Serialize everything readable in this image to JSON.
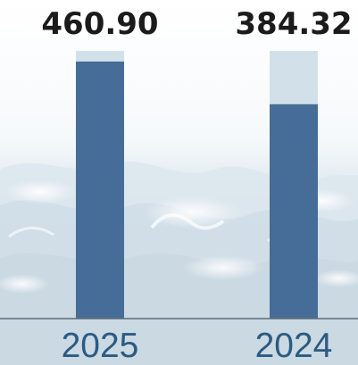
{
  "chart_data": {
    "type": "bar",
    "categories": [
      "2025",
      "2024"
    ],
    "series": [
      {
        "values": [
          460.9,
          384.32
        ]
      }
    ],
    "value_labels": [
      "460.90",
      "384.32"
    ],
    "background_total": [
      480,
      480
    ],
    "title": "",
    "xlabel": "",
    "ylabel": "",
    "ylim": [
      0,
      480
    ],
    "grid": false,
    "legend": "none"
  },
  "colors": {
    "bar": "#466d97",
    "bar_background": "#d2e1e9",
    "axis": "#5a6e7a",
    "value_text": "#1b1b1b",
    "tick_text": "#2a5b82"
  }
}
